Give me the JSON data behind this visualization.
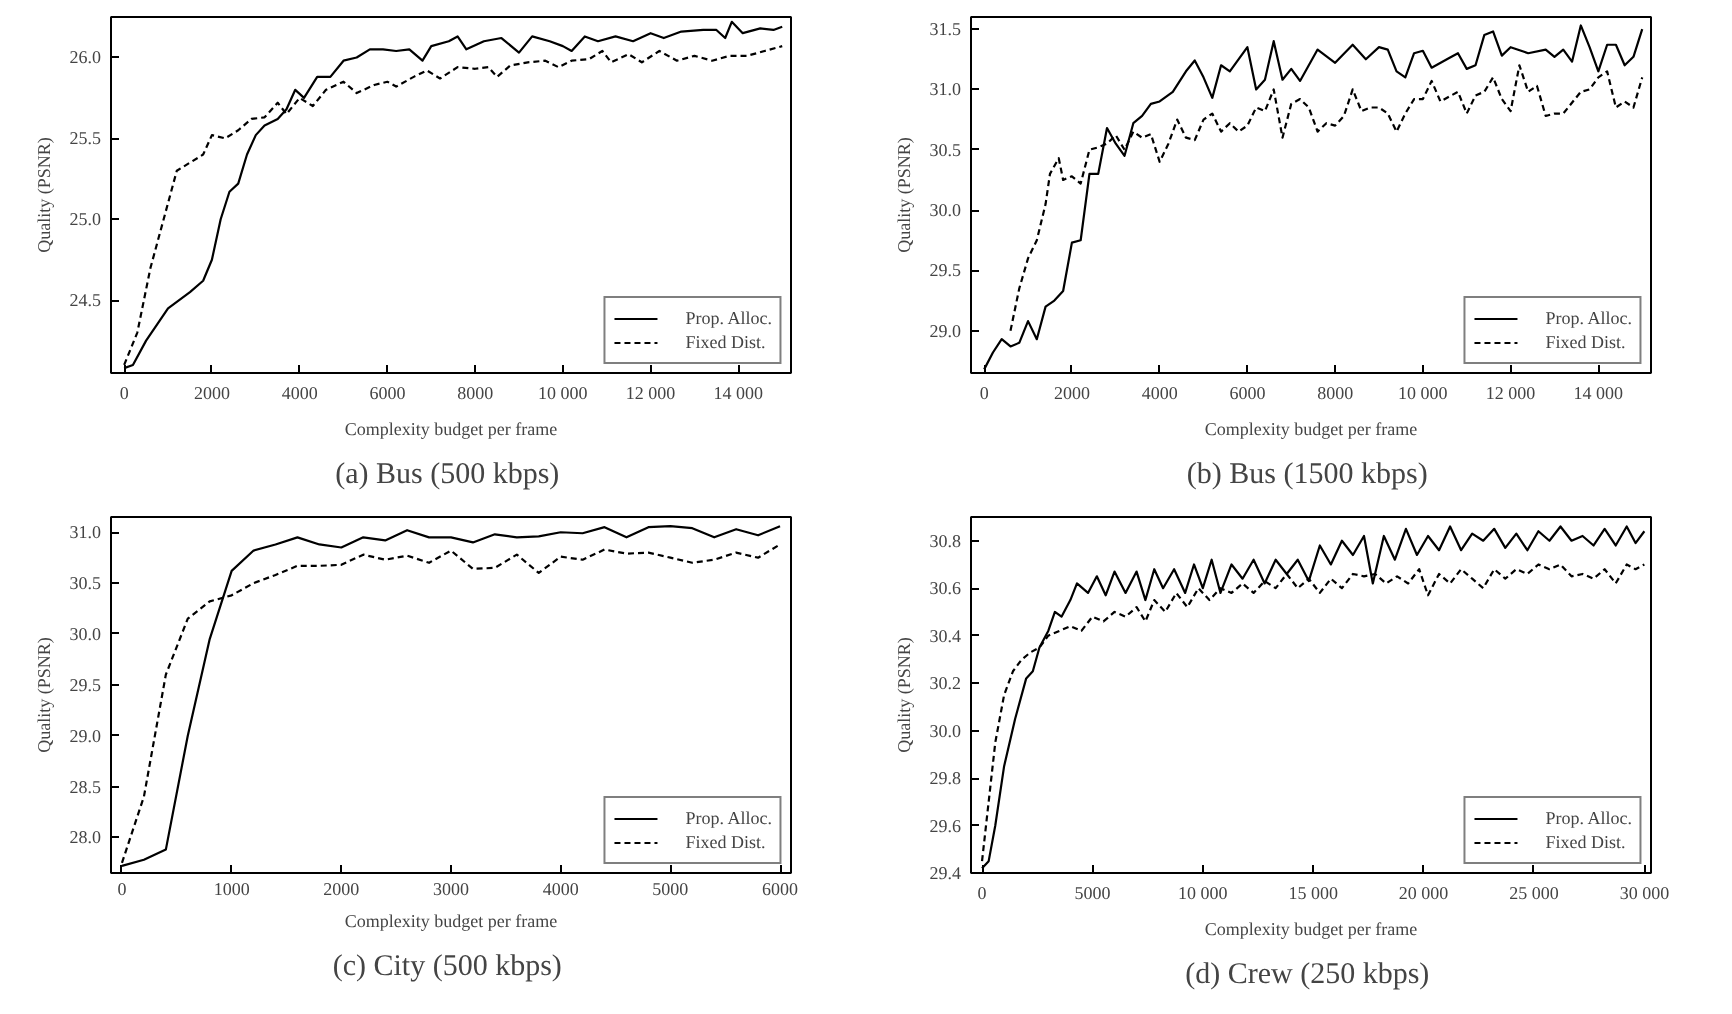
{
  "chart_data": [
    {
      "type": "line",
      "title": "(a)  Bus (500 kbps)",
      "xlabel": "Complexity budget per frame",
      "ylabel": "Quality (PSNR)",
      "legend": "bottom right",
      "grid": false,
      "marker": "none",
      "xlim": [
        -300,
        15200
      ],
      "ylim": [
        24.05,
        26.25
      ],
      "xticks": [
        0,
        2000,
        4000,
        6000,
        8000,
        {
          "value": 10000,
          "label": "10 000"
        },
        {
          "value": 12000,
          "label": "12 000"
        },
        {
          "value": 14000,
          "label": "14 000"
        }
      ],
      "yticks": [
        {
          "value": 24.5,
          "label": "24.5"
        },
        {
          "value": 25.0,
          "label": "25.0"
        },
        {
          "value": 25.5,
          "label": "25.5"
        },
        {
          "value": 26.0,
          "label": "26.0"
        }
      ],
      "series": [
        {
          "name": "Prop. Alloc.",
          "color": "#000000",
          "line_style": "solid",
          "x": [
            0,
            200,
            500,
            1000,
            1500,
            1800,
            2000,
            2200,
            2400,
            2600,
            2800,
            3000,
            3200,
            3500,
            3700,
            3900,
            4100,
            4400,
            4700,
            5000,
            5300,
            5600,
            5900,
            6200,
            6500,
            6800,
            7000,
            7400,
            7600,
            7800,
            8200,
            8600,
            9000,
            9300,
            9700,
            10000,
            10200,
            10500,
            10800,
            11200,
            11600,
            12000,
            12300,
            12700,
            13200,
            13500,
            13700,
            13850,
            14100,
            14500,
            14800,
            15000
          ],
          "values": [
            24.08,
            24.1,
            24.25,
            24.45,
            24.55,
            24.62,
            24.75,
            25.0,
            25.17,
            25.22,
            25.4,
            25.52,
            25.58,
            25.62,
            25.68,
            25.8,
            25.75,
            25.88,
            25.88,
            25.98,
            26.0,
            26.05,
            26.05,
            26.04,
            26.05,
            25.98,
            26.07,
            26.1,
            26.13,
            26.05,
            26.1,
            26.12,
            26.03,
            26.13,
            26.1,
            26.07,
            26.04,
            26.13,
            26.1,
            26.13,
            26.1,
            26.15,
            26.12,
            26.16,
            26.17,
            26.17,
            26.12,
            26.22,
            26.15,
            26.18,
            26.17,
            26.19
          ]
        },
        {
          "name": "Fixed Dist.",
          "color": "#000000",
          "line_style": "dashed",
          "x": [
            0,
            300,
            600,
            900,
            1200,
            1500,
            1800,
            2000,
            2300,
            2600,
            2900,
            3200,
            3500,
            3700,
            4000,
            4300,
            4600,
            5000,
            5300,
            5700,
            6000,
            6200,
            6600,
            6900,
            7200,
            7600,
            8000,
            8300,
            8500,
            8800,
            9200,
            9600,
            9900,
            10200,
            10600,
            10900,
            11100,
            11500,
            11800,
            12200,
            12600,
            13000,
            13400,
            13800,
            14200,
            14600,
            15000
          ],
          "values": [
            24.1,
            24.3,
            24.7,
            25.0,
            25.3,
            25.35,
            25.4,
            25.52,
            25.5,
            25.55,
            25.62,
            25.63,
            25.72,
            25.65,
            25.75,
            25.7,
            25.8,
            25.85,
            25.78,
            25.83,
            25.85,
            25.82,
            25.88,
            25.92,
            25.87,
            25.94,
            25.93,
            25.94,
            25.88,
            25.95,
            25.97,
            25.98,
            25.94,
            25.98,
            25.99,
            26.04,
            25.97,
            26.02,
            25.97,
            26.04,
            25.98,
            26.01,
            25.98,
            26.01,
            26.01,
            26.04,
            26.07
          ]
        }
      ]
    },
    {
      "type": "line",
      "title": "(b)  Bus (1500 kbps)",
      "xlabel": "Complexity budget per frame",
      "ylabel": "Quality (PSNR)",
      "legend": "bottom right",
      "grid": false,
      "marker": "none",
      "xlim": [
        -300,
        15200
      ],
      "ylim": [
        28.65,
        31.6
      ],
      "xticks": [
        0,
        2000,
        4000,
        6000,
        8000,
        {
          "value": 10000,
          "label": "10 000"
        },
        {
          "value": 12000,
          "label": "12 000"
        },
        {
          "value": 14000,
          "label": "14 000"
        }
      ],
      "yticks": [
        {
          "value": 29.0,
          "label": "29.0"
        },
        {
          "value": 29.5,
          "label": "29.5"
        },
        {
          "value": 30.0,
          "label": "30.0"
        },
        {
          "value": 30.5,
          "label": "30.5"
        },
        {
          "value": 31.0,
          "label": "31.0"
        },
        {
          "value": 31.5,
          "label": "31.5"
        }
      ],
      "series": [
        {
          "name": "Prop. Alloc.",
          "color": "#000000",
          "line_style": "solid",
          "x": [
            0,
            200,
            400,
            600,
            800,
            1000,
            1200,
            1400,
            1600,
            1800,
            2000,
            2200,
            2400,
            2600,
            2800,
            3000,
            3200,
            3400,
            3600,
            3800,
            4000,
            4300,
            4600,
            4800,
            5000,
            5200,
            5400,
            5600,
            6000,
            6200,
            6400,
            6600,
            6800,
            7000,
            7200,
            7600,
            8000,
            8400,
            8700,
            9000,
            9200,
            9400,
            9600,
            9800,
            10000,
            10200,
            10600,
            10800,
            11000,
            11200,
            11400,
            11600,
            11800,
            12000,
            12400,
            12800,
            13000,
            13200,
            13400,
            13600,
            13800,
            14000,
            14200,
            14400,
            14600,
            14800,
            15000
          ],
          "values": [
            28.68,
            28.82,
            28.93,
            28.87,
            28.9,
            29.08,
            28.93,
            29.2,
            29.25,
            29.33,
            29.73,
            29.75,
            30.3,
            30.3,
            30.68,
            30.55,
            30.45,
            30.72,
            30.78,
            30.88,
            30.9,
            30.98,
            31.15,
            31.24,
            31.1,
            30.93,
            31.2,
            31.15,
            31.35,
            31.0,
            31.08,
            31.4,
            31.08,
            31.17,
            31.07,
            31.33,
            31.22,
            31.37,
            31.25,
            31.35,
            31.33,
            31.15,
            31.1,
            31.3,
            31.32,
            31.18,
            31.26,
            31.3,
            31.17,
            31.2,
            31.45,
            31.48,
            31.28,
            31.35,
            31.3,
            31.33,
            31.27,
            31.33,
            31.23,
            31.53,
            31.35,
            31.15,
            31.37,
            31.37,
            31.2,
            31.27,
            31.5
          ]
        },
        {
          "name": "Fixed Dist.",
          "color": "#000000",
          "line_style": "dashed",
          "x": [
            600,
            800,
            1000,
            1200,
            1400,
            1500,
            1700,
            1800,
            2000,
            2200,
            2400,
            2600,
            2800,
            3000,
            3200,
            3400,
            3600,
            3800,
            4000,
            4200,
            4400,
            4600,
            4800,
            5000,
            5200,
            5400,
            5600,
            5800,
            6000,
            6200,
            6400,
            6600,
            6800,
            7000,
            7200,
            7400,
            7600,
            7800,
            8000,
            8200,
            8400,
            8600,
            8800,
            9000,
            9200,
            9400,
            9600,
            9800,
            10000,
            10200,
            10400,
            10800,
            11000,
            11200,
            11400,
            11600,
            11800,
            12000,
            12200,
            12400,
            12600,
            12800,
            13000,
            13200,
            13600,
            13800,
            14000,
            14200,
            14400,
            14600,
            14800,
            15000
          ],
          "values": [
            29.0,
            29.35,
            29.6,
            29.75,
            30.05,
            30.3,
            30.43,
            30.25,
            30.28,
            30.22,
            30.5,
            30.52,
            30.55,
            30.62,
            30.5,
            30.65,
            30.6,
            30.63,
            30.4,
            30.55,
            30.75,
            30.6,
            30.58,
            30.75,
            30.8,
            30.65,
            30.72,
            30.65,
            30.7,
            30.85,
            30.82,
            31.0,
            30.6,
            30.88,
            30.92,
            30.85,
            30.65,
            30.72,
            30.7,
            30.78,
            31.0,
            30.82,
            30.85,
            30.85,
            30.8,
            30.65,
            30.8,
            30.92,
            30.92,
            31.07,
            30.9,
            30.98,
            30.8,
            30.95,
            30.98,
            31.1,
            30.92,
            30.82,
            31.2,
            30.98,
            31.03,
            30.78,
            30.8,
            30.8,
            30.98,
            31.0,
            31.1,
            31.15,
            30.85,
            30.9,
            30.85,
            31.1
          ]
        }
      ]
    },
    {
      "type": "line",
      "title": "(c)  City (500 kbps)",
      "xlabel": "Complexity budget per frame",
      "ylabel": "Quality (PSNR)",
      "legend": "bottom right",
      "grid": false,
      "marker": "none",
      "xlim": [
        -100,
        6100
      ],
      "ylim": [
        27.65,
        31.15
      ],
      "xticks": [
        0,
        1000,
        2000,
        3000,
        4000,
        5000,
        6000
      ],
      "yticks": [
        {
          "value": 28.0,
          "label": "28.0"
        },
        {
          "value": 28.5,
          "label": "28.5"
        },
        {
          "value": 29.0,
          "label": "29.0"
        },
        {
          "value": 29.5,
          "label": "29.5"
        },
        {
          "value": 30.0,
          "label": "30.0"
        },
        {
          "value": 30.5,
          "label": "30.5"
        },
        {
          "value": 31.0,
          "label": "31.0"
        }
      ],
      "series": [
        {
          "name": "Prop. Alloc.",
          "color": "#000000",
          "line_style": "solid",
          "x": [
            0,
            200,
            400,
            600,
            800,
            1000,
            1200,
            1400,
            1600,
            1800,
            2000,
            2200,
            2400,
            2600,
            2800,
            3000,
            3200,
            3400,
            3600,
            3800,
            4000,
            4200,
            4400,
            4600,
            4800,
            5000,
            5200,
            5400,
            5600,
            5800,
            6000
          ],
          "values": [
            27.72,
            27.78,
            27.88,
            29.0,
            29.95,
            30.62,
            30.82,
            30.88,
            30.95,
            30.88,
            30.85,
            30.95,
            30.92,
            31.02,
            30.95,
            30.95,
            30.9,
            30.98,
            30.95,
            30.96,
            31.0,
            30.99,
            31.05,
            30.95,
            31.05,
            31.06,
            31.04,
            30.95,
            31.03,
            30.97,
            31.06
          ]
        },
        {
          "name": "Fixed Dist.",
          "color": "#000000",
          "line_style": "dashed",
          "x": [
            0,
            200,
            400,
            600,
            800,
            1000,
            1200,
            1400,
            1600,
            1800,
            2000,
            2200,
            2400,
            2600,
            2800,
            3000,
            3200,
            3400,
            3600,
            3800,
            4000,
            4200,
            4400,
            4600,
            4800,
            5000,
            5200,
            5400,
            5600,
            5800,
            6000
          ],
          "values": [
            27.75,
            28.4,
            29.6,
            30.15,
            30.32,
            30.38,
            30.5,
            30.58,
            30.67,
            30.67,
            30.68,
            30.78,
            30.73,
            30.77,
            30.7,
            30.82,
            30.64,
            30.65,
            30.78,
            30.6,
            30.76,
            30.73,
            30.83,
            30.79,
            30.8,
            30.75,
            30.7,
            30.73,
            30.8,
            30.75,
            30.88
          ]
        }
      ]
    },
    {
      "type": "line",
      "title": "(d)  Crew (250 kbps)",
      "xlabel": "Complexity budget per frame",
      "ylabel": "Quality (PSNR)",
      "legend": "bottom right",
      "grid": false,
      "marker": "none",
      "xlim": [
        -500,
        30300
      ],
      "ylim": [
        29.4,
        30.9
      ],
      "xticks": [
        0,
        5000,
        {
          "value": 10000,
          "label": "10 000"
        },
        {
          "value": 15000,
          "label": "15 000"
        },
        {
          "value": 20000,
          "label": "20 000"
        },
        {
          "value": 25000,
          "label": "25 000"
        },
        {
          "value": 30000,
          "label": "30 000"
        }
      ],
      "yticks": [
        29.4,
        29.6,
        29.8,
        {
          "value": 30.0,
          "label": "30.0"
        },
        30.2,
        30.4,
        30.6,
        30.8
      ],
      "series": [
        {
          "name": "Prop. Alloc.",
          "color": "#000000",
          "line_style": "solid",
          "x": [
            0,
            300,
            600,
            1000,
            1500,
            2000,
            2300,
            2600,
            3000,
            3300,
            3600,
            4000,
            4300,
            4800,
            5200,
            5600,
            6000,
            6500,
            7000,
            7400,
            7800,
            8200,
            8700,
            9200,
            9600,
            10000,
            10400,
            10800,
            11300,
            11800,
            12300,
            12800,
            13300,
            13800,
            14300,
            14800,
            15300,
            15800,
            16300,
            16800,
            17300,
            17700,
            18200,
            18700,
            19200,
            19700,
            20200,
            20700,
            21200,
            21700,
            22200,
            22700,
            23200,
            23700,
            24200,
            24700,
            25200,
            25700,
            26200,
            26700,
            27200,
            27700,
            28200,
            28700,
            29200,
            29600,
            30000
          ],
          "values": [
            29.42,
            29.45,
            29.6,
            29.85,
            30.05,
            30.22,
            30.25,
            30.35,
            30.42,
            30.5,
            30.48,
            30.55,
            30.62,
            30.58,
            30.65,
            30.57,
            30.67,
            30.58,
            30.67,
            30.55,
            30.68,
            30.6,
            30.68,
            30.58,
            30.7,
            30.6,
            30.72,
            30.58,
            30.7,
            30.64,
            30.72,
            30.62,
            30.72,
            30.66,
            30.72,
            30.63,
            30.78,
            30.7,
            30.8,
            30.74,
            30.82,
            30.62,
            30.82,
            30.72,
            30.85,
            30.74,
            30.82,
            30.76,
            30.86,
            30.76,
            30.83,
            30.8,
            30.85,
            30.77,
            30.83,
            30.76,
            30.84,
            30.8,
            30.86,
            30.8,
            30.82,
            30.78,
            30.85,
            30.78,
            30.86,
            30.79,
            30.84
          ]
        },
        {
          "name": "Fixed Dist.",
          "color": "#000000",
          "line_style": "dashed",
          "x": [
            0,
            300,
            600,
            1000,
            1400,
            1800,
            2200,
            2600,
            3000,
            3500,
            4000,
            4500,
            5000,
            5500,
            6000,
            6500,
            7000,
            7400,
            7800,
            8300,
            8800,
            9300,
            9800,
            10300,
            10800,
            11300,
            11800,
            12300,
            12800,
            13300,
            13800,
            14300,
            14800,
            15300,
            15800,
            16300,
            16800,
            17300,
            17800,
            18300,
            18800,
            19300,
            19800,
            20200,
            20700,
            21200,
            21700,
            22200,
            22700,
            23200,
            23700,
            24200,
            24700,
            25200,
            25700,
            26200,
            26700,
            27200,
            27700,
            28200,
            28700,
            29200,
            29600,
            30000
          ],
          "values": [
            29.45,
            29.7,
            29.95,
            30.15,
            30.25,
            30.3,
            30.33,
            30.35,
            30.4,
            30.42,
            30.44,
            30.42,
            30.48,
            30.46,
            30.5,
            30.48,
            30.52,
            30.46,
            30.55,
            30.5,
            30.58,
            30.52,
            30.6,
            30.55,
            30.6,
            30.58,
            30.62,
            30.58,
            30.63,
            30.6,
            30.66,
            30.6,
            30.64,
            30.58,
            30.64,
            30.6,
            30.66,
            30.65,
            30.66,
            30.62,
            30.65,
            30.62,
            30.68,
            30.57,
            30.66,
            30.62,
            30.68,
            30.64,
            30.6,
            30.68,
            30.64,
            30.68,
            30.66,
            30.7,
            30.68,
            30.7,
            30.65,
            30.66,
            30.64,
            30.68,
            30.62,
            30.7,
            30.68,
            30.7
          ]
        }
      ]
    }
  ]
}
